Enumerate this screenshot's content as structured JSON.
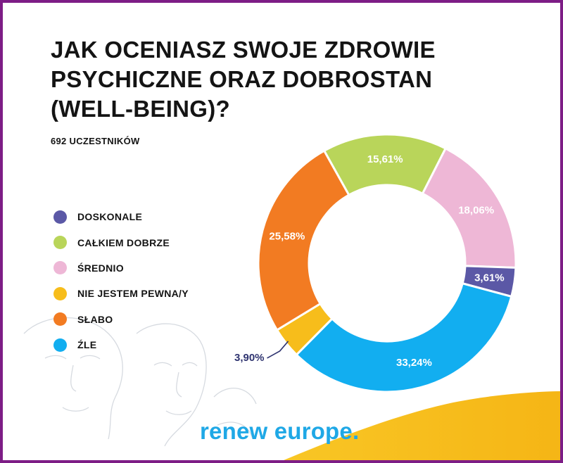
{
  "title": "JAK OCENIASZ SWOJE ZDROWIE PSYCHICZNE ORAZ DOBROSTAN (WELL-BEING)?",
  "participants": "692 UCZESTNIKÓW",
  "brand": "renew europe.",
  "chart_data": {
    "type": "pie",
    "title": "JAK OCENIASZ SWOJE ZDROWIE PSYCHICZNE ORAZ DOBROSTAN (WELL-BEING)?",
    "legend_position": "left",
    "slices": [
      {
        "name": "DOSKONALE",
        "value": 3.61,
        "label": "3,61%",
        "color": "#5b58a6"
      },
      {
        "name": "CAŁKIEM DOBRZE",
        "value": 15.61,
        "label": "15,61%",
        "color": "#b9d55a"
      },
      {
        "name": "ŚREDNIO",
        "value": 18.06,
        "label": "18,06%",
        "color": "#eeb7d6"
      },
      {
        "name": "NIE JESTEM PEWNA/Y",
        "value": 3.9,
        "label": "3,90%",
        "color": "#f7bd1b"
      },
      {
        "name": "SŁABO",
        "value": 25.58,
        "label": "25,58%",
        "color": "#f27b22"
      },
      {
        "name": "ŹLE",
        "value": 33.24,
        "label": "33,24%",
        "color": "#12aef0"
      }
    ],
    "slice_order_clockwise": [
      "ŚREDNIO",
      "DOSKONALE",
      "ŹLE",
      "NIE JESTEM PEWNA/Y",
      "SŁABO",
      "CAŁKIEM DOBRZE"
    ]
  }
}
